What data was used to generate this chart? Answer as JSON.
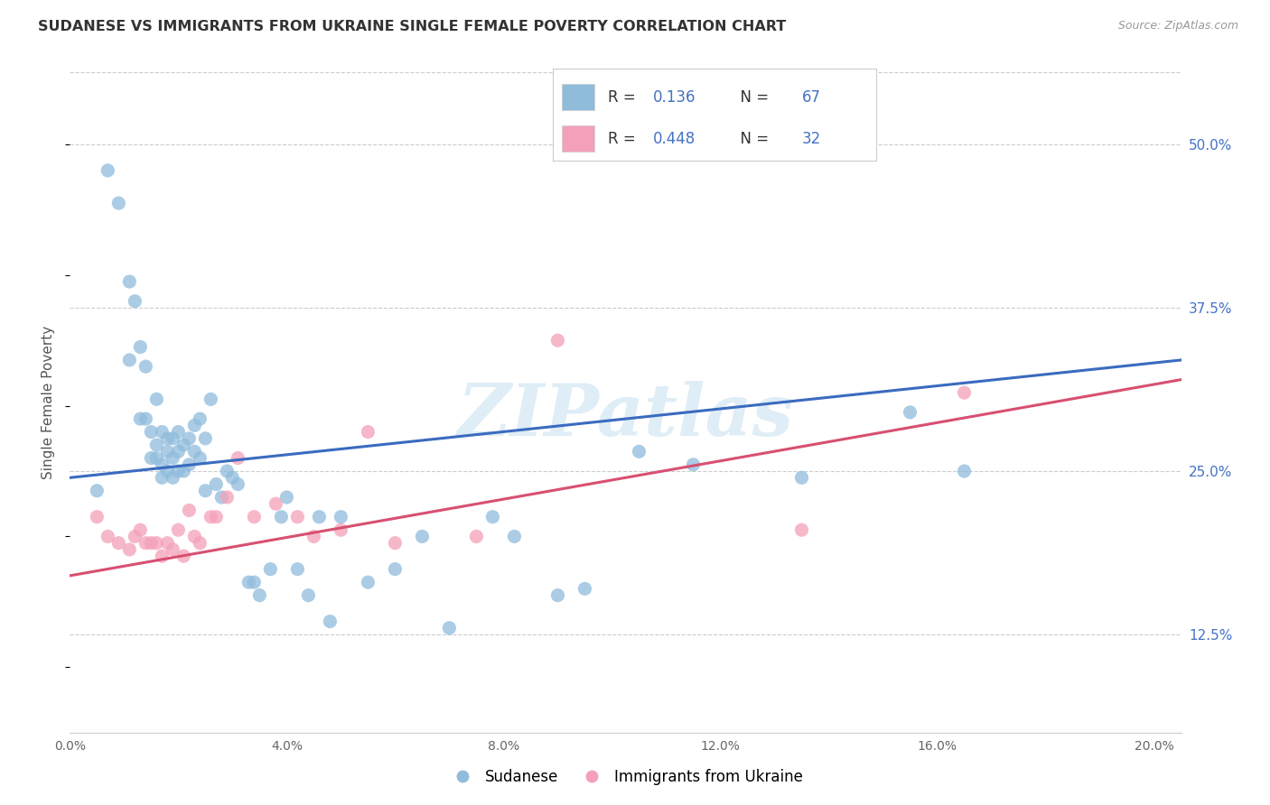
{
  "title": "SUDANESE VS IMMIGRANTS FROM UKRAINE SINGLE FEMALE POVERTY CORRELATION CHART",
  "source": "Source: ZipAtlas.com",
  "ylabel": "Single Female Poverty",
  "ytick_values": [
    0.125,
    0.25,
    0.375,
    0.5
  ],
  "ytick_labels": [
    "12.5%",
    "25.0%",
    "37.5%",
    "50.0%"
  ],
  "xtick_values": [
    0.0,
    0.04,
    0.08,
    0.12,
    0.16,
    0.2
  ],
  "xtick_labels": [
    "0.0%",
    "4.0%",
    "8.0%",
    "12.0%",
    "16.0%",
    "20.0%"
  ],
  "xmin": 0.0,
  "xmax": 0.205,
  "ymin": 0.05,
  "ymax": 0.555,
  "sudanese_color": "#8fbcdb",
  "ukraine_color": "#f4a0b8",
  "trendline_blue": "#3a6bbf",
  "trendline_pink": "#d85070",
  "watermark": "ZIPatlas",
  "blue_r": "0.136",
  "blue_n": "67",
  "pink_r": "0.448",
  "pink_n": "32",
  "sudanese_x": [
    0.005,
    0.007,
    0.009,
    0.011,
    0.011,
    0.012,
    0.013,
    0.013,
    0.014,
    0.014,
    0.015,
    0.015,
    0.016,
    0.016,
    0.016,
    0.017,
    0.017,
    0.017,
    0.018,
    0.018,
    0.018,
    0.019,
    0.019,
    0.019,
    0.02,
    0.02,
    0.02,
    0.021,
    0.021,
    0.022,
    0.022,
    0.023,
    0.023,
    0.024,
    0.024,
    0.025,
    0.025,
    0.026,
    0.027,
    0.028,
    0.029,
    0.03,
    0.031,
    0.033,
    0.034,
    0.035,
    0.037,
    0.039,
    0.04,
    0.042,
    0.044,
    0.046,
    0.048,
    0.05,
    0.055,
    0.06,
    0.065,
    0.07,
    0.078,
    0.082,
    0.09,
    0.095,
    0.105,
    0.115,
    0.135,
    0.155,
    0.165
  ],
  "sudanese_y": [
    0.235,
    0.48,
    0.455,
    0.395,
    0.335,
    0.38,
    0.345,
    0.29,
    0.29,
    0.33,
    0.26,
    0.28,
    0.26,
    0.27,
    0.305,
    0.245,
    0.255,
    0.28,
    0.265,
    0.25,
    0.275,
    0.245,
    0.26,
    0.275,
    0.25,
    0.265,
    0.28,
    0.25,
    0.27,
    0.255,
    0.275,
    0.265,
    0.285,
    0.26,
    0.29,
    0.235,
    0.275,
    0.305,
    0.24,
    0.23,
    0.25,
    0.245,
    0.24,
    0.165,
    0.165,
    0.155,
    0.175,
    0.215,
    0.23,
    0.175,
    0.155,
    0.215,
    0.135,
    0.215,
    0.165,
    0.175,
    0.2,
    0.13,
    0.215,
    0.2,
    0.155,
    0.16,
    0.265,
    0.255,
    0.245,
    0.295,
    0.25
  ],
  "ukraine_x": [
    0.005,
    0.007,
    0.009,
    0.011,
    0.012,
    0.013,
    0.014,
    0.015,
    0.016,
    0.017,
    0.018,
    0.019,
    0.02,
    0.021,
    0.022,
    0.023,
    0.024,
    0.026,
    0.027,
    0.029,
    0.031,
    0.034,
    0.038,
    0.042,
    0.045,
    0.05,
    0.055,
    0.06,
    0.075,
    0.09,
    0.135,
    0.165
  ],
  "ukraine_y": [
    0.215,
    0.2,
    0.195,
    0.19,
    0.2,
    0.205,
    0.195,
    0.195,
    0.195,
    0.185,
    0.195,
    0.19,
    0.205,
    0.185,
    0.22,
    0.2,
    0.195,
    0.215,
    0.215,
    0.23,
    0.26,
    0.215,
    0.225,
    0.215,
    0.2,
    0.205,
    0.28,
    0.195,
    0.2,
    0.35,
    0.205,
    0.31
  ],
  "blue_trend_x": [
    0.0,
    0.205
  ],
  "blue_trend_y": [
    0.245,
    0.335
  ],
  "pink_trend_x": [
    0.0,
    0.205
  ],
  "pink_trend_y": [
    0.17,
    0.32
  ]
}
